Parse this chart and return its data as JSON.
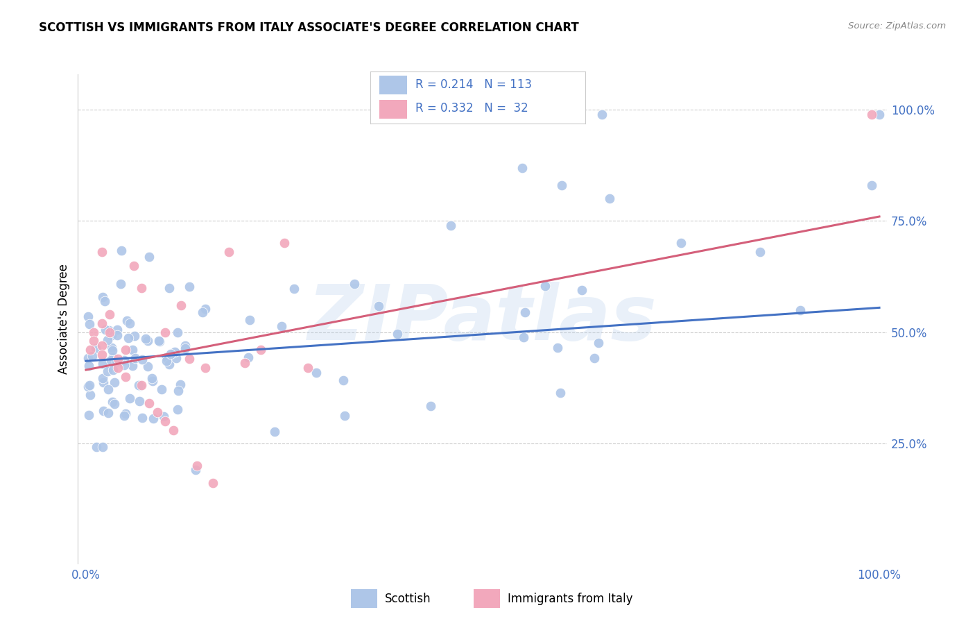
{
  "title": "SCOTTISH VS IMMIGRANTS FROM ITALY ASSOCIATE'S DEGREE CORRELATION CHART",
  "source": "Source: ZipAtlas.com",
  "ylabel": "Associate's Degree",
  "watermark": "ZIPatlas",
  "legend_r1": "0.214",
  "legend_n1": "113",
  "legend_r2": "0.332",
  "legend_n2": "32",
  "ytick_labels": [
    "100.0%",
    "75.0%",
    "50.0%",
    "25.0%"
  ],
  "ytick_positions": [
    1.0,
    0.75,
    0.5,
    0.25
  ],
  "blue_color": "#aec6e8",
  "pink_color": "#f2a8bc",
  "line_blue": "#4472c4",
  "line_pink": "#d45f7a",
  "text_blue": "#4472c4",
  "background": "#ffffff",
  "blue_line_x": [
    0.0,
    1.0
  ],
  "blue_line_y": [
    0.435,
    0.555
  ],
  "pink_line_x": [
    0.0,
    1.0
  ],
  "pink_line_y": [
    0.415,
    0.76
  ],
  "xlim": [
    -0.01,
    1.01
  ],
  "ylim": [
    -0.02,
    1.08
  ]
}
